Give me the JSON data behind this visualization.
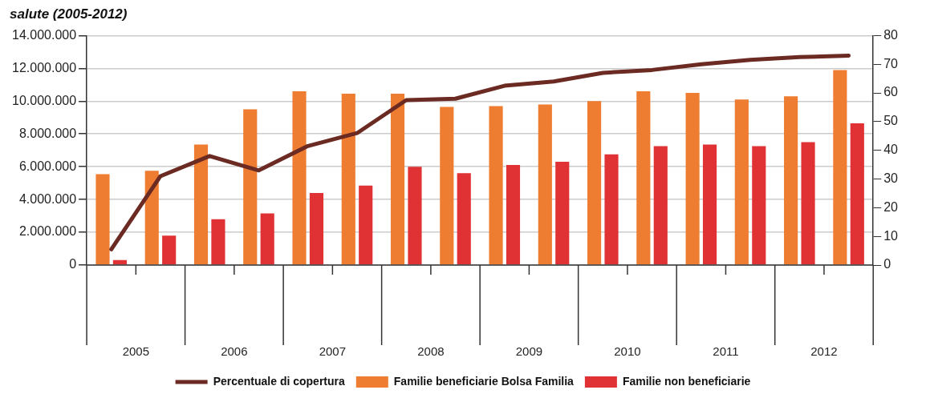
{
  "chart_data": {
    "type": "bar",
    "title": "salute (2005-2012)",
    "x": [
      2005.25,
      2005.75,
      2006.25,
      2006.75,
      2007.25,
      2007.75,
      2008.25,
      2008.75,
      2009.25,
      2009.75,
      2010.25,
      2010.75,
      2011.25,
      2011.75,
      2012.25,
      2012.75
    ],
    "xlim": [
      2005,
      2013
    ],
    "xticks": [
      {
        "value": 2005.5,
        "label": "2005"
      },
      {
        "value": 2006.5,
        "label": "2006"
      },
      {
        "value": 2007.5,
        "label": "2007"
      },
      {
        "value": 2008.5,
        "label": "2008"
      },
      {
        "value": 2009.5,
        "label": "2009"
      },
      {
        "value": 2010.5,
        "label": "2010"
      },
      {
        "value": 2011.5,
        "label": "2011"
      },
      {
        "value": 2012.5,
        "label": "2012"
      }
    ],
    "series": [
      {
        "name": "Familie beneficiarie Bolsa Familia",
        "color": "#ee7d31",
        "values": [
          5550000,
          5750000,
          7350000,
          9500000,
          10600000,
          10450000,
          10450000,
          9650000,
          9700000,
          9800000,
          10000000,
          10600000,
          10500000,
          10100000,
          10300000,
          11900000
        ]
      },
      {
        "name": "Familie non beneficiarie",
        "color": "#e03234",
        "values": [
          300000,
          1800000,
          2800000,
          3150000,
          4400000,
          4850000,
          6000000,
          5600000,
          6100000,
          6300000,
          6750000,
          7250000,
          7350000,
          7250000,
          7500000,
          8650000
        ]
      },
      {
        "name": "Percentuale di copertura",
        "type": "line",
        "axis": "y2",
        "color": "#6b2a22",
        "values": [
          5.5,
          31,
          38,
          33,
          41.5,
          46,
          57.5,
          58,
          62.5,
          64,
          67,
          68,
          70,
          71.5,
          72.5,
          73
        ]
      }
    ],
    "ylim": [
      0,
      14000000
    ],
    "yticks": [
      {
        "value": 0,
        "label": "0"
      },
      {
        "value": 2000000,
        "label": "2.000.000"
      },
      {
        "value": 4000000,
        "label": "4.000.000"
      },
      {
        "value": 6000000,
        "label": "6.000.000"
      },
      {
        "value": 8000000,
        "label": "8.000.000"
      },
      {
        "value": 10000000,
        "label": "10.000.000"
      },
      {
        "value": 12000000,
        "label": "12.000.000"
      },
      {
        "value": 14000000,
        "label": "14.000.000"
      }
    ],
    "y2lim": [
      0,
      80
    ],
    "y2ticks": [
      {
        "value": 0,
        "label": "0"
      },
      {
        "value": 10,
        "label": "10"
      },
      {
        "value": 20,
        "label": "20"
      },
      {
        "value": 30,
        "label": "30"
      },
      {
        "value": 40,
        "label": "40"
      },
      {
        "value": 50,
        "label": "50"
      },
      {
        "value": 60,
        "label": "60"
      },
      {
        "value": 70,
        "label": "70"
      },
      {
        "value": 80,
        "label": "80"
      }
    ],
    "grid": "y",
    "legend": "bottom",
    "marker": "none"
  }
}
